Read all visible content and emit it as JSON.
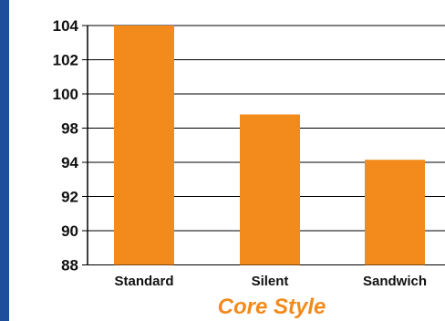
{
  "chart_data": {
    "type": "bar",
    "categories": [
      "Standard",
      "Silent",
      "Sandwich"
    ],
    "values": [
      104,
      98.8,
      94.3
    ],
    "xlabel": "Core Style",
    "ylabel": "",
    "title": "",
    "ylim": [
      88,
      104
    ],
    "yticks": [
      "104",
      "102",
      "100",
      "98",
      "94",
      "92",
      "90",
      "88"
    ],
    "grid": true,
    "colors": {
      "bar": "#f28a1c",
      "frame": "#1f4e9a",
      "grid": "#000000"
    }
  }
}
